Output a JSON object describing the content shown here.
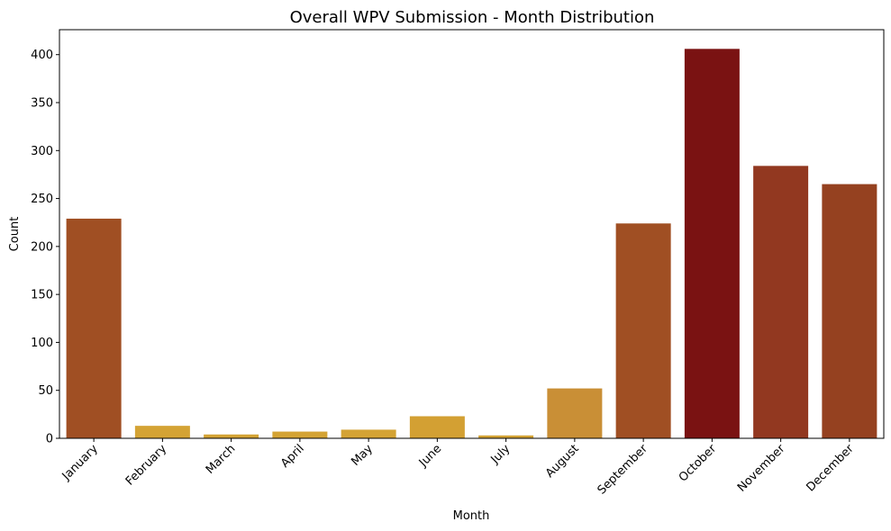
{
  "chart_data": {
    "type": "bar",
    "title": "Overall WPV Submission - Month Distribution",
    "xlabel": "Month",
    "ylabel": "Count",
    "categories": [
      "January",
      "February",
      "March",
      "April",
      "May",
      "June",
      "July",
      "August",
      "September",
      "October",
      "November",
      "December"
    ],
    "values": [
      229,
      13,
      4,
      7,
      9,
      23,
      3,
      52,
      224,
      406,
      284,
      265
    ],
    "colors": [
      "#a04f23",
      "#d4a334",
      "#d4a334",
      "#d4a334",
      "#d4a334",
      "#d3a033",
      "#d4a334",
      "#c98f36",
      "#a04f23",
      "#7a1212",
      "#923820",
      "#954120"
    ],
    "ylim": [
      0,
      426
    ],
    "yticks": [
      0,
      50,
      100,
      150,
      200,
      250,
      300,
      350,
      400
    ],
    "grid": false,
    "legend": "none"
  }
}
